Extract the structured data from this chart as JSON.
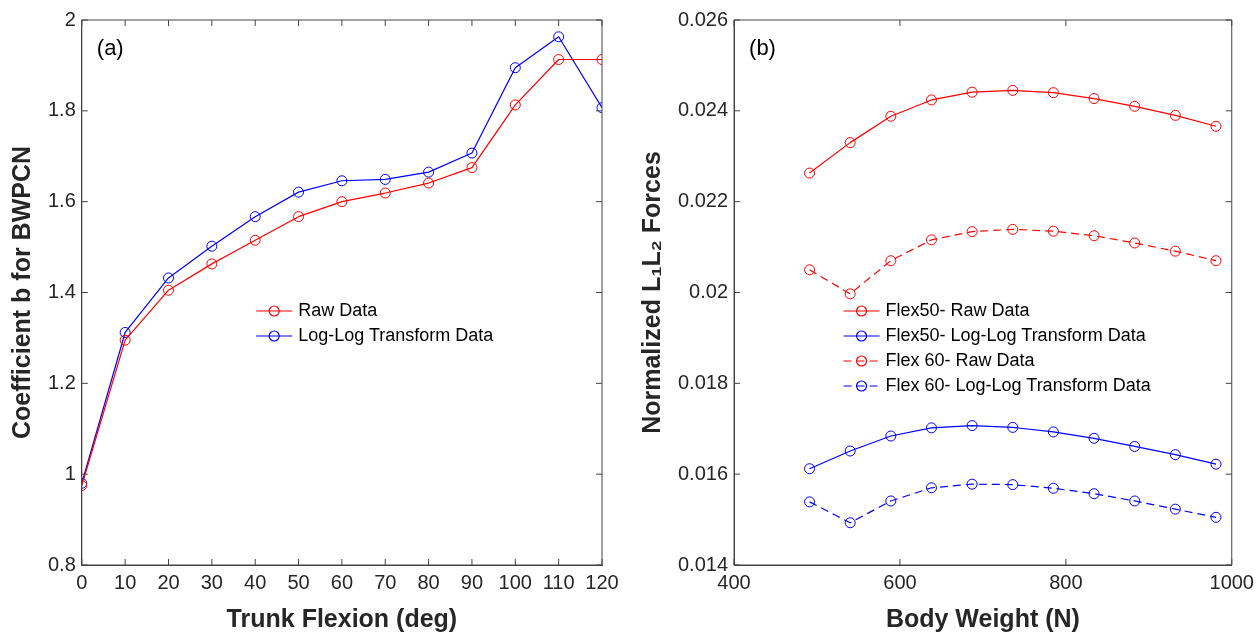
{
  "chart_data": [
    {
      "type": "line",
      "xlabel": "Trunk Flexion (deg)",
      "ylabel": "Coefficient b for BWPCN",
      "annotations": [
        "(a)"
      ],
      "x": [
        0,
        10,
        20,
        30,
        40,
        50,
        60,
        70,
        80,
        90,
        100,
        110,
        120
      ],
      "series": [
        {
          "name": "Raw Data",
          "color": "#ff0000",
          "values": [
            0.975,
            1.295,
            1.405,
            1.463,
            1.515,
            1.567,
            1.6,
            1.619,
            1.641,
            1.675,
            1.813,
            1.913,
            1.913
          ]
        },
        {
          "name": "Log-Log Transform Data",
          "color": "#0000ff",
          "values": [
            0.98,
            1.312,
            1.432,
            1.502,
            1.567,
            1.621,
            1.646,
            1.649,
            1.665,
            1.707,
            1.895,
            1.963,
            1.807
          ]
        }
      ],
      "xlim": [
        0,
        120
      ],
      "xticks": [
        0,
        10,
        20,
        30,
        40,
        50,
        60,
        70,
        80,
        90,
        100,
        110,
        120
      ],
      "ylim": [
        0.8,
        2
      ],
      "yticks": [
        0.8,
        1,
        1.2,
        1.4,
        1.6,
        1.8,
        2
      ],
      "grid": false,
      "legend": "center",
      "marker": "circle",
      "line_style": "solid"
    },
    {
      "type": "line",
      "xlabel": "Body Weight (N)",
      "ylabel": "Normalized L₁L₂ Forces",
      "annotations": [
        "(b)"
      ],
      "x": [
        491,
        540,
        589,
        638,
        687,
        736,
        785,
        834,
        883,
        932,
        981
      ],
      "series": [
        {
          "name": "Flex50- Raw Data",
          "color": "#ff0000",
          "line_style": "solid",
          "values": [
            0.02263,
            0.0233,
            0.02388,
            0.02424,
            0.02441,
            0.02445,
            0.0244,
            0.02427,
            0.0241,
            0.0239,
            0.02366
          ]
        },
        {
          "name": "Flex50- Log-Log Transform Data",
          "color": "#0000ff",
          "line_style": "solid",
          "values": [
            0.01612,
            0.01651,
            0.01684,
            0.01702,
            0.01707,
            0.01703,
            0.01693,
            0.01679,
            0.01661,
            0.01643,
            0.01622
          ]
        },
        {
          "name": "Flex 60- Raw Data",
          "color": "#ff0000",
          "line_style": "dashed",
          "values": [
            0.0205,
            0.01997,
            0.0207,
            0.02116,
            0.02134,
            0.02139,
            0.02135,
            0.02125,
            0.02109,
            0.02091,
            0.0207
          ]
        },
        {
          "name": "Flex 60- Log-Log Transform Data",
          "color": "#0000ff",
          "line_style": "dashed",
          "values": [
            0.01539,
            0.01493,
            0.01541,
            0.0157,
            0.01578,
            0.01577,
            0.01569,
            0.01557,
            0.01541,
            0.01523,
            0.01505
          ]
        }
      ],
      "xlim": [
        400,
        1000
      ],
      "xticks": [
        400,
        600,
        800,
        1000
      ],
      "ylim": [
        0.014,
        0.026
      ],
      "yticks": [
        0.014,
        0.016,
        0.018,
        0.02,
        0.022,
        0.024,
        0.026
      ],
      "grid": false,
      "legend": "center left",
      "marker": "circle"
    }
  ]
}
